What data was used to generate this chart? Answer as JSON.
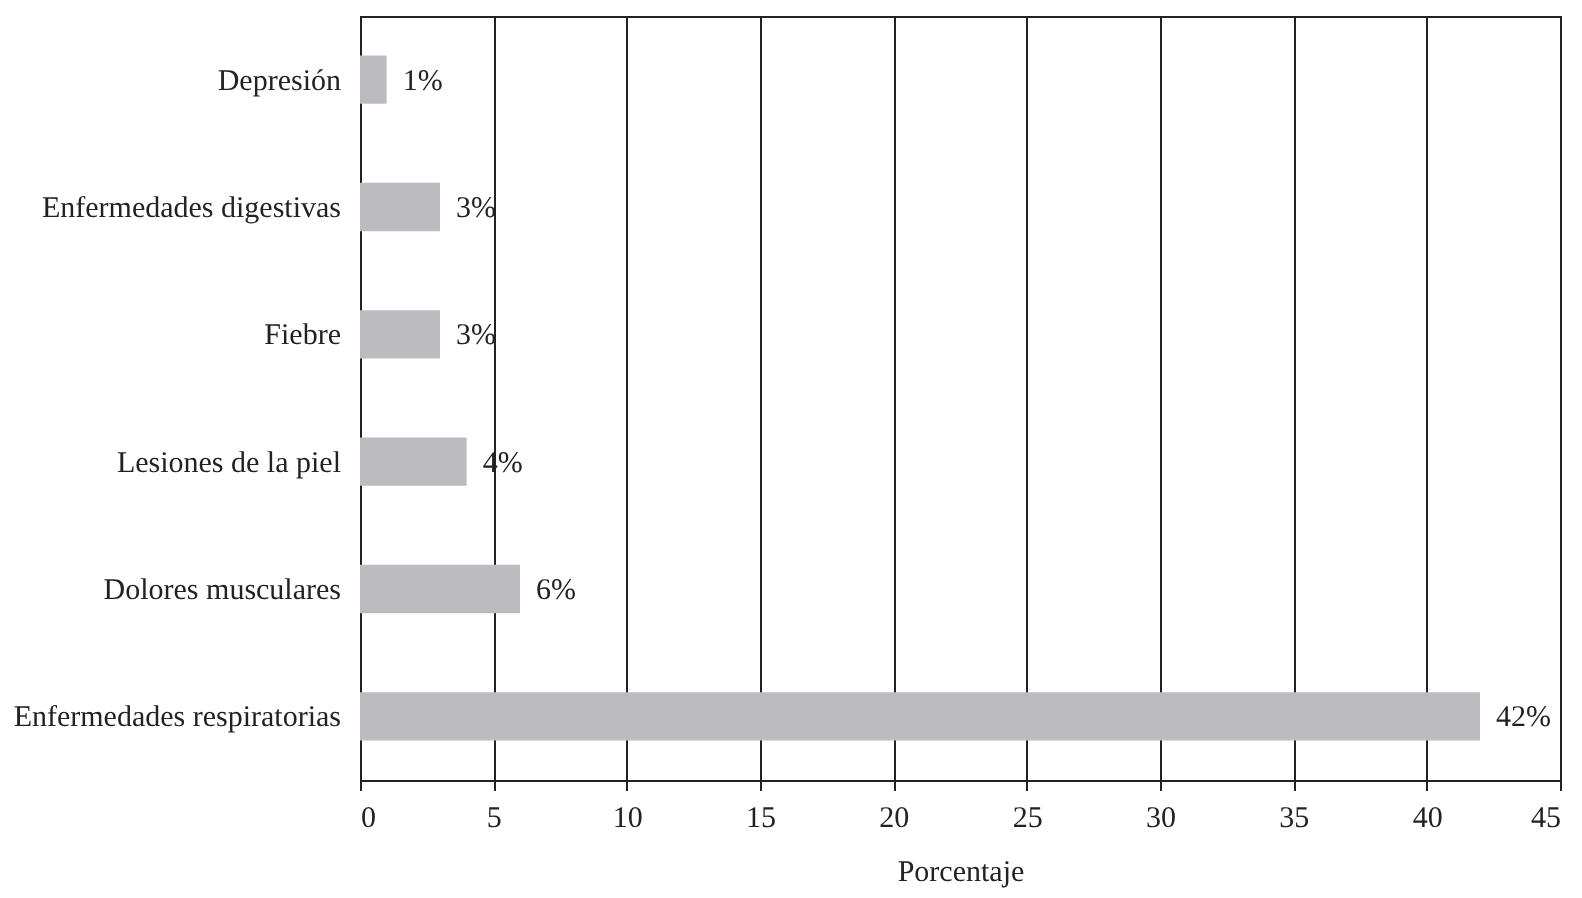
{
  "chart_data": {
    "type": "bar",
    "orientation": "horizontal",
    "xlabel": "Porcentaje",
    "categories": [
      "Depresión",
      "Enfermedades digestivas",
      "Fiebre",
      "Lesiones de la piel",
      "Dolores musculares",
      "Enfermedades respiratorias"
    ],
    "values": [
      1,
      3,
      3,
      4,
      6,
      42
    ],
    "value_labels": [
      "1%",
      "3%",
      "3%",
      "4%",
      "6%",
      "42%"
    ],
    "color": "#bcbcc0",
    "xlim": [
      0,
      45
    ],
    "xticks": [
      0,
      5,
      10,
      15,
      20,
      25,
      30,
      35,
      40,
      45
    ],
    "grid": "x"
  }
}
